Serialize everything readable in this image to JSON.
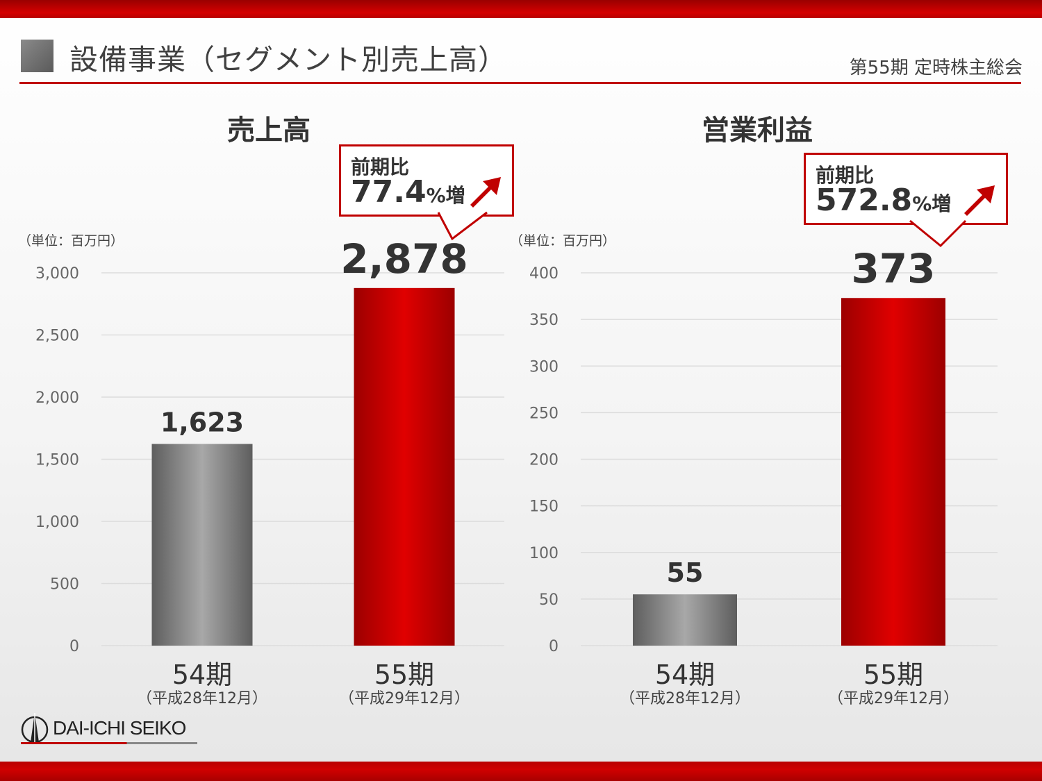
{
  "header": {
    "title": "設備事業（セグメント別売上高）",
    "meeting": "第55期 定時株主総会"
  },
  "colors": {
    "accent": "#c00000",
    "bar_prev": "#7a7a7a",
    "bar_curr": "#d40000",
    "grid": "#dcdcdc"
  },
  "logo": {
    "text": "DAI-ICHI SEIKO"
  },
  "chart_data": [
    {
      "type": "bar",
      "title": "売上高",
      "unit": "（単位：百万円）",
      "ylim": [
        0,
        3000
      ],
      "yticks": [
        0,
        500,
        1000,
        1500,
        2000,
        2500,
        3000
      ],
      "ytick_labels": [
        "0",
        "500",
        "1,000",
        "1,500",
        "2,000",
        "2,500",
        "3,000"
      ],
      "grid": true,
      "categories": [
        {
          "label": "54期",
          "sublabel": "（平成28年12月）"
        },
        {
          "label": "55期",
          "sublabel": "（平成29年12月）"
        }
      ],
      "values": [
        1623,
        2878
      ],
      "value_labels": [
        "1,623",
        "2,878"
      ],
      "callout": {
        "label": "前期比",
        "value": "77.4",
        "suffix": "%増"
      }
    },
    {
      "type": "bar",
      "title": "営業利益",
      "unit": "（単位：百万円）",
      "ylim": [
        0,
        400
      ],
      "yticks": [
        0,
        50,
        100,
        150,
        200,
        250,
        300,
        350,
        400
      ],
      "ytick_labels": [
        "0",
        "50",
        "100",
        "150",
        "200",
        "250",
        "300",
        "350",
        "400"
      ],
      "grid": true,
      "categories": [
        {
          "label": "54期",
          "sublabel": "（平成28年12月）"
        },
        {
          "label": "55期",
          "sublabel": "（平成29年12月）"
        }
      ],
      "values": [
        55,
        373
      ],
      "value_labels": [
        "55",
        "373"
      ],
      "callout": {
        "label": "前期比",
        "value": "572.8",
        "suffix": "%増"
      }
    }
  ]
}
